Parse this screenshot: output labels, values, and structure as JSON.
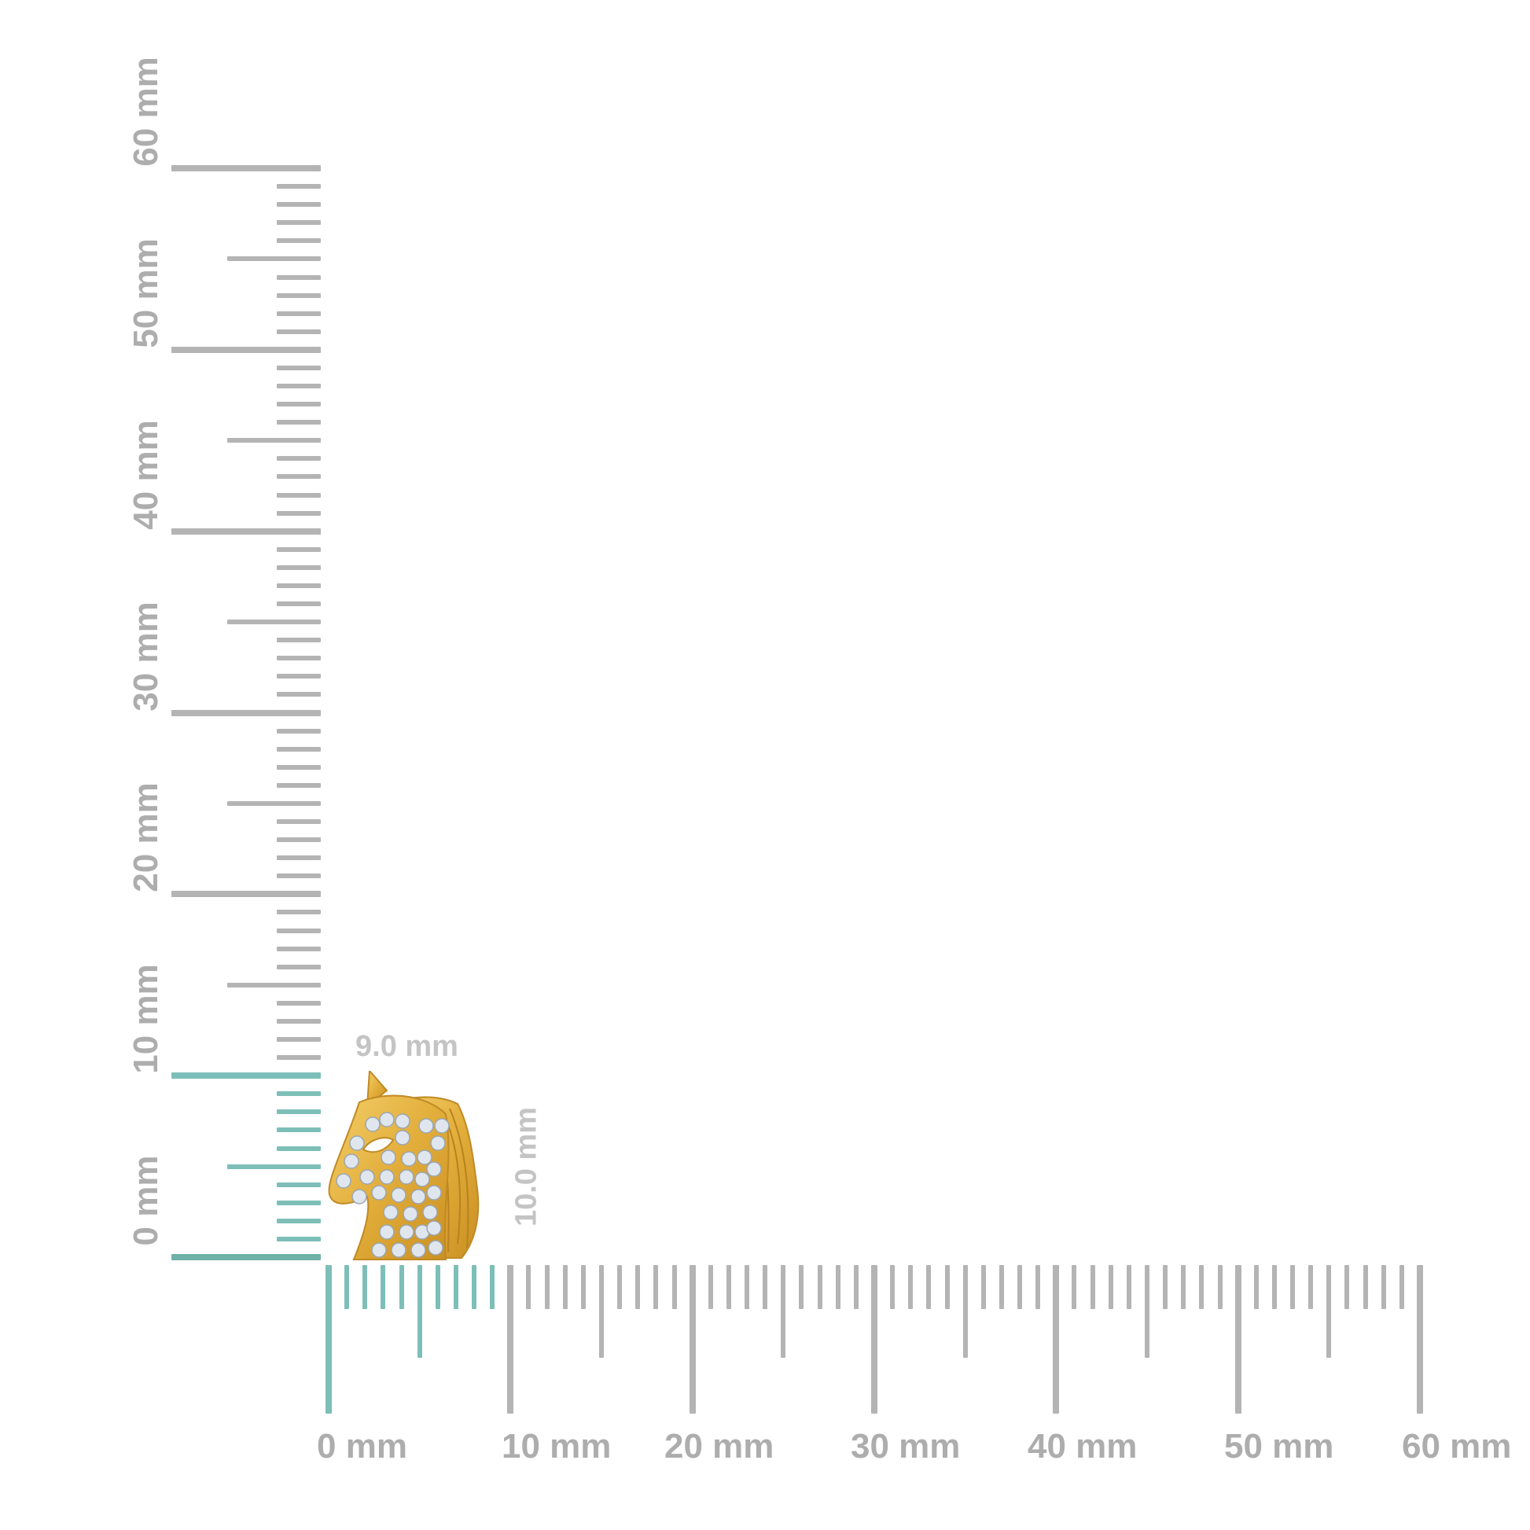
{
  "rulers": {
    "unit": "mm",
    "vertical": {
      "min": 0,
      "max": 60,
      "highlight_max": 10,
      "labels": [
        "0 mm",
        "10 mm",
        "20 mm",
        "30 mm",
        "40 mm",
        "50 mm",
        "60 mm"
      ]
    },
    "horizontal": {
      "min": 0,
      "max": 60,
      "highlight_max": 9,
      "labels": [
        "0 mm",
        "10 mm",
        "20 mm",
        "30 mm",
        "40 mm",
        "50 mm",
        "60 mm"
      ]
    }
  },
  "dimensions": {
    "width": "9.0 mm",
    "height": "10.0 mm"
  },
  "product": {
    "icon": "horse-head-pendant-icon",
    "metal_color": "#e2ad3a",
    "stone_color": "#dfe6ee"
  },
  "colors": {
    "highlight": "#7dbfb8",
    "ruler": "#b4b4b4",
    "label": "#adadad"
  }
}
